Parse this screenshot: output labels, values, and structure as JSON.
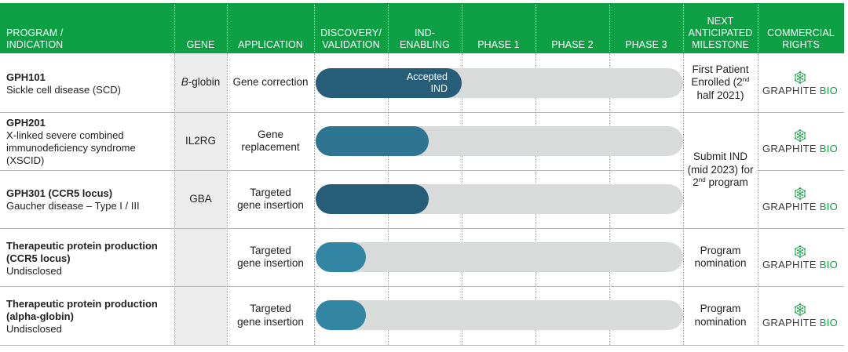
{
  "colors": {
    "header_bg": "#0c9f43",
    "bar_dark": "#265d78",
    "bar_mid": "#2d7591",
    "bar_light": "#3386a3",
    "track": "#d9dada",
    "gene_column_bg": "#ececec"
  },
  "header": {
    "program": "PROGRAM /\nINDICATION",
    "gene": "GENE",
    "application": "APPLICATION",
    "discovery": "DISCOVERY/\nVALIDATION",
    "ind_enabling": "IND-\nENABLING",
    "phase1": "PHASE 1",
    "phase2": "PHASE 2",
    "phase3": "PHASE 3",
    "milestone": "NEXT\nANTICIPATED\nMILESTONE",
    "rights": "COMMERCIAL\nRIGHTS"
  },
  "chart_data": {
    "type": "bar",
    "stages": [
      "DISCOVERY/VALIDATION",
      "IND-ENABLING",
      "PHASE 1",
      "PHASE 2",
      "PHASE 3"
    ],
    "rows": [
      {
        "program": "GPH101",
        "indication": "Sickle cell disease (SCD)",
        "gene": "B-globin",
        "application": "Gene correction",
        "progress": 2.0,
        "bar_label": "Accepted\nIND",
        "color": "#265d78"
      },
      {
        "program": "GPH201",
        "indication": "X-linked severe combined\nimmunodeficiency syndrome\n(XSCID)",
        "gene": "IL2RG",
        "application": "Gene\nreplacement",
        "progress": 1.55,
        "bar_label": "",
        "color": "#2d7591"
      },
      {
        "program": "GPH301 (CCR5 locus)",
        "indication": "Gaucher disease – Type I / III",
        "gene": "GBA",
        "application": "Targeted\ngene insertion",
        "progress": 1.55,
        "bar_label": "",
        "color": "#265d78"
      },
      {
        "program": "Therapeutic protein production\n(CCR5 locus)",
        "indication": "Undisclosed",
        "gene": "",
        "application": "Targeted\ngene insertion",
        "progress": 0.7,
        "bar_label": "",
        "color": "#3386a3"
      },
      {
        "program": "Therapeutic protein production\n(alpha-globin)",
        "indication": "Undisclosed",
        "gene": "",
        "application": "Targeted\ngene insertion",
        "progress": 0.7,
        "bar_label": "",
        "color": "#3386a3"
      }
    ]
  },
  "gene_prefix_italic": "B",
  "gene_suffix": "-globin",
  "milestones": {
    "row1_text_a": "First Patient\nEnrolled (2",
    "row1_sup": "nd",
    "row1_text_b": "\nhalf 2021)",
    "row23_text_a": "Submit IND\n(mid 2023) for\n2",
    "row23_sup": "nd",
    "row23_text_b": " program",
    "row4": "Program\nnomination",
    "row5": "Program\nnomination"
  },
  "logo": {
    "icon": "graphite-hexagon-icon",
    "word_a": "GRAPHITE",
    "word_b": "BIO"
  }
}
